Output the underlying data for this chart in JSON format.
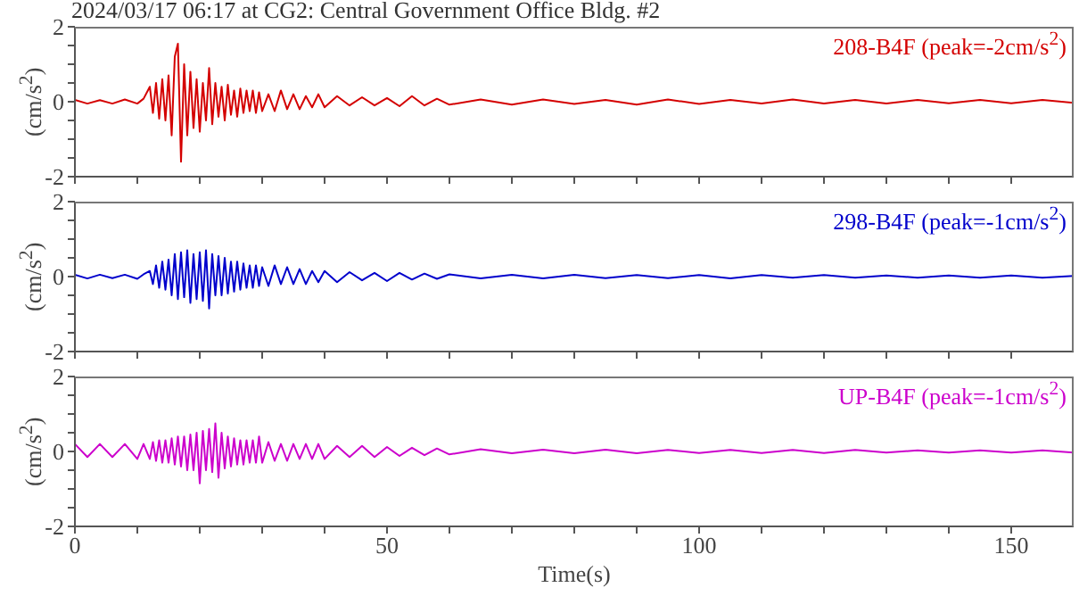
{
  "chart_data": [
    {
      "type": "line",
      "title": "2024/03/17 06:17 at CG2: Central Government Office Bldg. #2",
      "ylabel": "(cm/s$^{2}$)",
      "annotations": [
        "208-B4F (peak=-2cm/s$^{2}$)"
      ],
      "tick_labels": "y",
      "x": [
        0,
        2,
        4,
        6,
        8,
        10,
        11,
        12,
        12.5,
        13,
        13.5,
        14,
        14.5,
        15,
        15.5,
        16,
        16.5,
        17,
        17.5,
        18,
        18.5,
        19,
        19.5,
        20,
        20.5,
        21,
        21.5,
        22,
        22.5,
        23,
        23.5,
        24,
        24.5,
        25,
        25.5,
        26,
        26.5,
        27,
        27.5,
        28,
        28.5,
        29,
        29.5,
        30,
        31,
        32,
        33,
        34,
        35,
        36,
        37,
        38,
        39,
        40,
        42,
        44,
        46,
        48,
        50,
        52,
        54,
        56,
        58,
        60,
        65,
        70,
        75,
        80,
        85,
        90,
        95,
        100,
        105,
        110,
        115,
        120,
        125,
        130,
        135,
        140,
        145,
        150,
        155,
        160
      ],
      "series": [
        {
          "color": "#d40000",
          "values": [
            0.05,
            -0.05,
            0.04,
            -0.05,
            0.06,
            -0.05,
            0.08,
            0.4,
            -0.3,
            0.5,
            -0.45,
            0.6,
            -0.5,
            0.7,
            -0.9,
            1.2,
            1.55,
            -1.6,
            1.0,
            -0.9,
            0.8,
            -0.7,
            0.6,
            -0.8,
            0.5,
            -0.5,
            0.9,
            -0.6,
            0.5,
            -0.4,
            0.4,
            -0.5,
            0.45,
            -0.35,
            0.3,
            -0.4,
            0.35,
            -0.3,
            0.3,
            -0.25,
            0.3,
            -0.3,
            0.25,
            -0.25,
            0.2,
            -0.25,
            0.3,
            -0.2,
            0.2,
            -0.2,
            0.15,
            -0.15,
            0.2,
            -0.15,
            0.15,
            -0.1,
            0.12,
            -0.1,
            0.1,
            -0.12,
            0.15,
            -0.1,
            0.08,
            -0.08,
            0.06,
            -0.08,
            0.06,
            -0.06,
            0.05,
            -0.08,
            0.06,
            -0.06,
            0.05,
            -0.05,
            0.06,
            -0.05,
            0.05,
            -0.05,
            0.05,
            -0.04,
            0.05,
            -0.04,
            0.05,
            -0.03
          ]
        }
      ],
      "xlim": [
        0,
        160
      ],
      "xticks": [
        0,
        {
          "value": 10,
          "label": null
        },
        {
          "value": 20,
          "label": null
        },
        {
          "value": 30,
          "label": null
        },
        {
          "value": 40,
          "label": null
        },
        50,
        {
          "value": 60,
          "label": null
        },
        {
          "value": 70,
          "label": null
        },
        {
          "value": 80,
          "label": null
        },
        {
          "value": 90,
          "label": null
        },
        100,
        {
          "value": 110,
          "label": null
        },
        {
          "value": 120,
          "label": null
        },
        {
          "value": 130,
          "label": null
        },
        {
          "value": 140,
          "label": null
        },
        150
      ],
      "ylim": [
        -2,
        2
      ],
      "yticks": [
        -2,
        {
          "value": -1.5,
          "label": null
        },
        {
          "value": -1,
          "label": null
        },
        {
          "value": -0.5,
          "label": null
        },
        0,
        {
          "value": 0.5,
          "label": null
        },
        {
          "value": 1,
          "label": null
        },
        {
          "value": 1.5,
          "label": null
        },
        2
      ]
    },
    {
      "type": "line",
      "ylabel": "(cm/s$^{2}$)",
      "annotations": [
        "298-B4F (peak=-1cm/s$^{2}$)"
      ],
      "tick_labels": "y",
      "x": [
        0,
        2,
        4,
        6,
        8,
        10,
        11,
        12,
        12.5,
        13,
        13.5,
        14,
        14.5,
        15,
        15.5,
        16,
        16.5,
        17,
        17.5,
        18,
        18.5,
        19,
        19.5,
        20,
        20.5,
        21,
        21.5,
        22,
        22.5,
        23,
        23.5,
        24,
        24.5,
        25,
        25.5,
        26,
        26.5,
        27,
        27.5,
        28,
        28.5,
        29,
        29.5,
        30,
        31,
        32,
        33,
        34,
        35,
        36,
        37,
        38,
        39,
        40,
        42,
        44,
        46,
        48,
        50,
        52,
        54,
        56,
        58,
        60,
        65,
        70,
        75,
        80,
        85,
        90,
        95,
        100,
        105,
        110,
        115,
        120,
        125,
        130,
        135,
        140,
        145,
        150,
        155,
        160
      ],
      "series": [
        {
          "color": "#0000cc",
          "values": [
            0.05,
            -0.05,
            0.05,
            -0.04,
            0.05,
            -0.06,
            0.06,
            0.15,
            -0.2,
            0.3,
            -0.3,
            0.4,
            -0.35,
            0.45,
            -0.5,
            0.6,
            -0.6,
            0.65,
            -0.55,
            0.7,
            -0.7,
            0.6,
            -0.6,
            0.65,
            -0.65,
            0.7,
            -0.85,
            0.6,
            -0.5,
            0.55,
            -0.5,
            0.5,
            -0.45,
            0.4,
            -0.4,
            0.4,
            -0.35,
            0.35,
            -0.3,
            0.3,
            -0.3,
            0.3,
            -0.25,
            0.25,
            -0.25,
            0.3,
            -0.2,
            0.25,
            -0.2,
            0.2,
            -0.2,
            0.15,
            -0.15,
            0.15,
            -0.15,
            0.12,
            -0.1,
            0.1,
            -0.12,
            0.1,
            -0.08,
            0.08,
            -0.06,
            0.06,
            -0.05,
            0.05,
            -0.05,
            0.05,
            -0.04,
            0.04,
            -0.04,
            0.04,
            -0.05,
            0.04,
            -0.03,
            0.04,
            -0.03,
            0.03,
            -0.03,
            0.03,
            -0.03,
            0.03,
            -0.03,
            0.02
          ]
        }
      ],
      "xlim": [
        0,
        160
      ],
      "xticks": [
        0,
        {
          "value": 10,
          "label": null
        },
        {
          "value": 20,
          "label": null
        },
        {
          "value": 30,
          "label": null
        },
        {
          "value": 40,
          "label": null
        },
        50,
        {
          "value": 60,
          "label": null
        },
        {
          "value": 70,
          "label": null
        },
        {
          "value": 80,
          "label": null
        },
        {
          "value": 90,
          "label": null
        },
        100,
        {
          "value": 110,
          "label": null
        },
        {
          "value": 120,
          "label": null
        },
        {
          "value": 130,
          "label": null
        },
        {
          "value": 140,
          "label": null
        },
        150
      ],
      "ylim": [
        -2,
        2
      ],
      "yticks": [
        -2,
        {
          "value": -1.5,
          "label": null
        },
        {
          "value": -1,
          "label": null
        },
        {
          "value": -0.5,
          "label": null
        },
        0,
        {
          "value": 0.5,
          "label": null
        },
        {
          "value": 1,
          "label": null
        },
        {
          "value": 1.5,
          "label": null
        },
        2
      ]
    },
    {
      "type": "line",
      "xlabel": "Time(s)",
      "ylabel": "(cm/s$^{2}$)",
      "annotations": [
        "UP-B4F (peak=-1cm/s$^{2}$)"
      ],
      "x": [
        0,
        2,
        4,
        6,
        8,
        10,
        11,
        12,
        12.5,
        13,
        13.5,
        14,
        14.5,
        15,
        15.5,
        16,
        16.5,
        17,
        17.5,
        18,
        18.5,
        19,
        19.5,
        20,
        20.5,
        21,
        21.5,
        22,
        22.5,
        23,
        23.5,
        24,
        24.5,
        25,
        25.5,
        26,
        26.5,
        27,
        27.5,
        28,
        28.5,
        29,
        29.5,
        30,
        31,
        32,
        33,
        34,
        35,
        36,
        37,
        38,
        39,
        40,
        42,
        44,
        46,
        48,
        50,
        52,
        54,
        56,
        58,
        60,
        65,
        70,
        75,
        80,
        85,
        90,
        95,
        100,
        105,
        110,
        115,
        120,
        125,
        130,
        135,
        140,
        145,
        150,
        155,
        160
      ],
      "series": [
        {
          "color": "#cc00cc",
          "values": [
            0.2,
            -0.15,
            0.2,
            -0.15,
            0.2,
            -0.2,
            0.2,
            -0.2,
            0.25,
            -0.25,
            0.3,
            -0.3,
            0.3,
            -0.3,
            0.35,
            -0.35,
            0.4,
            -0.4,
            0.4,
            -0.5,
            0.45,
            -0.5,
            0.5,
            -0.85,
            0.55,
            -0.5,
            0.6,
            -0.55,
            0.75,
            -0.7,
            0.5,
            -0.45,
            0.4,
            -0.4,
            0.35,
            -0.35,
            0.3,
            -0.35,
            0.3,
            -0.3,
            0.3,
            -0.3,
            0.4,
            -0.3,
            0.25,
            -0.25,
            0.2,
            -0.25,
            0.2,
            -0.2,
            0.2,
            -0.2,
            0.2,
            -0.2,
            0.15,
            -0.15,
            0.15,
            -0.15,
            0.12,
            -0.12,
            0.1,
            -0.1,
            0.08,
            -0.08,
            0.06,
            -0.05,
            0.05,
            -0.05,
            0.05,
            -0.05,
            0.04,
            -0.04,
            0.04,
            -0.04,
            0.04,
            -0.04,
            0.04,
            -0.03,
            0.03,
            -0.03,
            0.03,
            -0.03,
            0.03,
            -0.03
          ]
        }
      ],
      "xlim": [
        0,
        160
      ],
      "xticks": [
        0,
        {
          "value": 10,
          "label": null
        },
        {
          "value": 20,
          "label": null
        },
        {
          "value": 30,
          "label": null
        },
        {
          "value": 40,
          "label": null
        },
        50,
        {
          "value": 60,
          "label": null
        },
        {
          "value": 70,
          "label": null
        },
        {
          "value": 80,
          "label": null
        },
        {
          "value": 90,
          "label": null
        },
        100,
        {
          "value": 110,
          "label": null
        },
        {
          "value": 120,
          "label": null
        },
        {
          "value": 130,
          "label": null
        },
        {
          "value": 140,
          "label": null
        },
        150
      ],
      "ylim": [
        -2,
        2
      ],
      "yticks": [
        -2,
        {
          "value": -1.5,
          "label": null
        },
        {
          "value": -1,
          "label": null
        },
        {
          "value": -0.5,
          "label": null
        },
        0,
        {
          "value": 0.5,
          "label": null
        },
        {
          "value": 1,
          "label": null
        },
        {
          "value": 1.5,
          "label": null
        },
        2
      ]
    }
  ]
}
